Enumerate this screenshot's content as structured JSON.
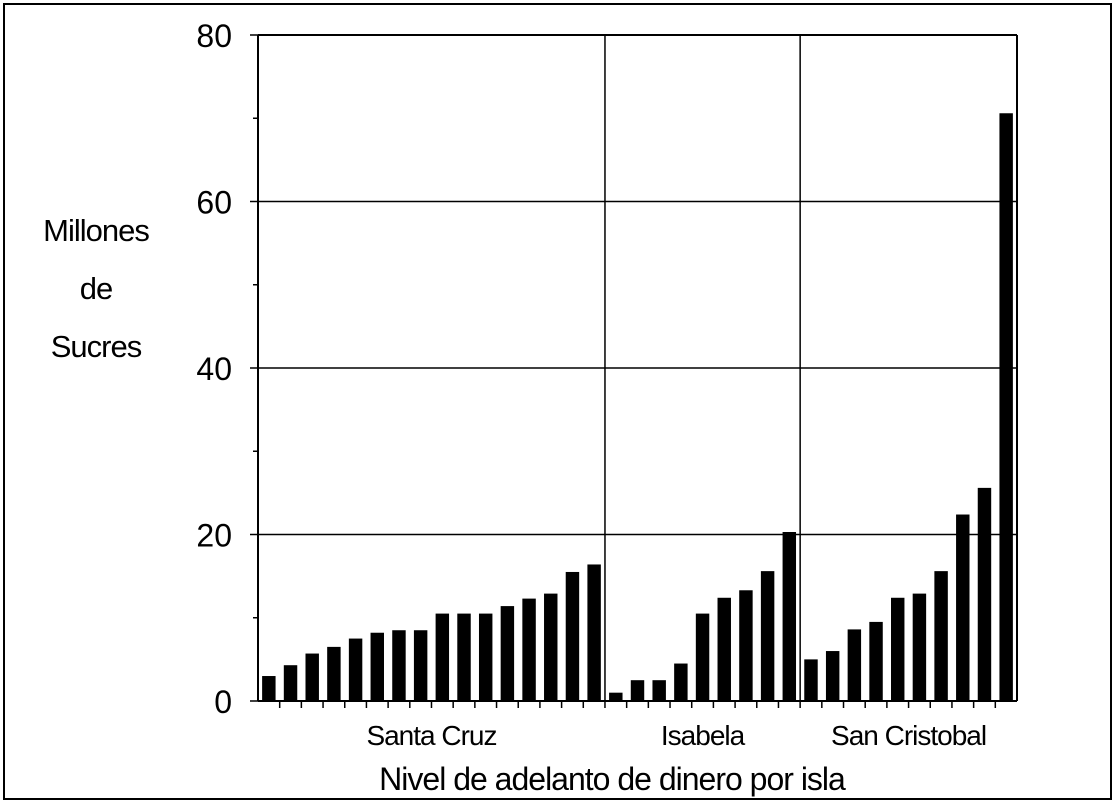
{
  "chart_data": {
    "type": "bar",
    "title": "",
    "ylabel_lines": [
      "Millones",
      "de",
      "Sucres"
    ],
    "xlabel": "Nivel de adelanto de dinero por isla",
    "ylim": [
      0,
      80
    ],
    "yticks": [
      "0",
      "20",
      "40",
      "60",
      "80"
    ],
    "ytick_values": [
      0,
      20,
      40,
      60,
      80
    ],
    "grid": true,
    "bar_color": "#000000",
    "groups": [
      {
        "name": "Santa Cruz",
        "values": [
          3.0,
          4.3,
          5.7,
          6.5,
          7.5,
          8.2,
          8.5,
          8.5,
          10.5,
          10.5,
          10.5,
          11.4,
          12.3,
          12.9,
          15.5,
          16.4
        ]
      },
      {
        "name": "Isabela",
        "values": [
          1.0,
          2.5,
          2.5,
          4.5,
          10.5,
          12.4,
          13.3,
          15.6,
          20.3
        ]
      },
      {
        "name": "San Cristobal",
        "values": [
          5.0,
          6.0,
          8.6,
          9.5,
          12.4,
          12.9,
          15.6,
          22.4,
          25.6,
          70.6
        ]
      }
    ]
  }
}
